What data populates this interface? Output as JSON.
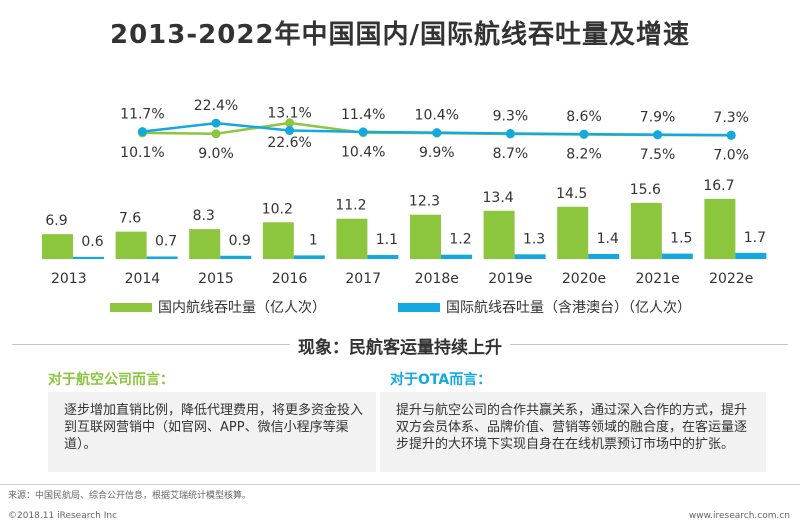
{
  "title": "2013-2022年中国国内/国际航线吞吐量及增速",
  "chart_data": {
    "type": "bar",
    "categories": [
      "2013",
      "2014",
      "2015",
      "2016",
      "2017",
      "2018e",
      "2019e",
      "2020e",
      "2021e",
      "2022e"
    ],
    "series": [
      {
        "name": "国内航线吞吐量（亿人次）",
        "values": [
          6.9,
          7.6,
          8.3,
          10.2,
          11.2,
          12.3,
          13.4,
          14.5,
          15.6,
          16.7
        ],
        "color": "#8cc63f"
      },
      {
        "name": "国际航线吞吐量（含港澳台）（亿人次）",
        "values": [
          0.6,
          0.7,
          0.9,
          1.0,
          1.1,
          1.2,
          1.3,
          1.4,
          1.5,
          1.7
        ],
        "color": "#14a8e0"
      }
    ],
    "growth_lines": [
      {
        "values": [
          null,
          10.1,
          9.0,
          22.6,
          10.4,
          9.9,
          8.7,
          8.2,
          7.5,
          7.0
        ],
        "labels": [
          "",
          "10.1%",
          "9.0%",
          "22.6%",
          "10.4%",
          "9.9%",
          "8.7%",
          "8.2%",
          "7.5%",
          "7.0%"
        ],
        "color": "#8cc63f"
      },
      {
        "values": [
          null,
          11.7,
          22.4,
          13.1,
          11.4,
          10.4,
          9.3,
          8.6,
          7.9,
          7.3
        ],
        "labels": [
          "",
          "11.7%",
          "22.4%",
          "13.1%",
          "11.4%",
          "10.4%",
          "9.3%",
          "8.6%",
          "7.9%",
          "7.3%"
        ],
        "color": "#14a8e0"
      }
    ],
    "legend_position": "bottom"
  },
  "phenomenon": {
    "title": "现象：民航客运量持续上升",
    "left_heading": "对于航空公司而言：",
    "left_text": "逐步增加直销比例，降低代理费用，将更多资金投入到互联网营销中（如官网、APP、微信小程序等渠道）。",
    "right_heading": "对于OTA而言：",
    "right_text": "提升与航空公司的合作共赢关系，通过深入合作的方式，提升双方会员体系、品牌价值、营销等领域的融合度，在客运量逐步提升的大环境下实现自身在在线机票预订市场中的扩张。"
  },
  "footer": {
    "source": "来源：中国民航局、综合公开信息，根据艾瑞统计模型核算。",
    "copyright": "©2018.11 iResearch Inc",
    "website": "www.iresearch.com.cn"
  }
}
